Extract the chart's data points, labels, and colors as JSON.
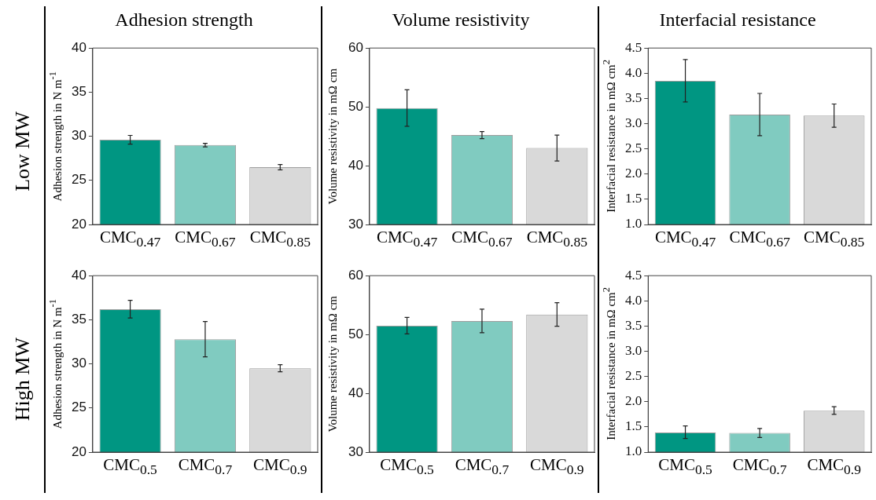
{
  "chart_data": [
    {
      "type": "bar",
      "title": "Adhesion strength",
      "ylabel": "Adhesion strength in N m$^{-1}$",
      "annotations": [
        "Low MW"
      ],
      "categories": [
        "CMC$_{0.47}$",
        "CMC$_{0.67}$",
        "CMC$_{0.85}$"
      ],
      "values": [
        29.6,
        29.0,
        26.5
      ],
      "errors": [
        0.5,
        0.2,
        0.3
      ],
      "colors": [
        "#009682",
        "#80cbc0",
        "#d9d9d9"
      ],
      "ylim": [
        20,
        40
      ],
      "yticks": [
        20,
        25,
        30,
        35,
        40
      ]
    },
    {
      "type": "bar",
      "title": "Volume resistivity",
      "ylabel": "Volume resistivity in mΩ cm",
      "categories": [
        "CMC$_{0.47}$",
        "CMC$_{0.67}$",
        "CMC$_{0.85}$"
      ],
      "values": [
        49.8,
        45.2,
        43.0
      ],
      "errors": [
        [
          46.7,
          52.9
        ],
        0.6,
        [
          40.8,
          45.2
        ]
      ],
      "colors": [
        "#009682",
        "#80cbc0",
        "#d9d9d9"
      ],
      "ylim": [
        30,
        60
      ],
      "yticks": [
        30,
        40,
        50,
        60
      ]
    },
    {
      "type": "bar",
      "title": "Interfacial resistance",
      "ylabel": "Interfacial resistance in mΩ cm$^{2}$",
      "categories": [
        "CMC$_{0.47}$",
        "CMC$_{0.67}$",
        "CMC$_{0.85}$"
      ],
      "values": [
        3.85,
        3.18,
        3.16
      ],
      "errors": [
        [
          3.43,
          4.27
        ],
        [
          2.76,
          3.6
        ],
        [
          2.93,
          3.39
        ]
      ],
      "colors": [
        "#009682",
        "#80cbc0",
        "#d9d9d9"
      ],
      "ylim": [
        1,
        4.5
      ],
      "yticks": [
        {
          "value": 1,
          "label": "1.0"
        },
        1.5,
        {
          "value": 2,
          "label": "2.0"
        },
        2.5,
        {
          "value": 3,
          "label": "3.0"
        },
        3.5,
        {
          "value": 4,
          "label": "4.0"
        },
        4.5
      ]
    },
    {
      "type": "bar",
      "ylabel": "Adhesion strength in N m$^{-1}$",
      "annotations": [
        "High MW"
      ],
      "categories": [
        "CMC$_{0.5}$",
        "CMC$_{0.7}$",
        "CMC$_{0.9}$"
      ],
      "values": [
        36.2,
        32.8,
        29.5
      ],
      "errors": [
        1.0,
        2.0,
        0.4
      ],
      "colors": [
        "#009682",
        "#80cbc0",
        "#d9d9d9"
      ],
      "ylim": [
        20,
        40
      ],
      "yticks": [
        20,
        25,
        30,
        35,
        40
      ]
    },
    {
      "type": "bar",
      "ylabel": "Volume resistivity in mΩ cm",
      "categories": [
        "CMC$_{0.5}$",
        "CMC$_{0.7}$",
        "CMC$_{0.9}$"
      ],
      "values": [
        51.5,
        52.3,
        53.4
      ],
      "errors": [
        1.4,
        2.0,
        2.0
      ],
      "colors": [
        "#009682",
        "#80cbc0",
        "#d9d9d9"
      ],
      "ylim": [
        30,
        60
      ],
      "yticks": [
        30,
        40,
        50,
        60
      ]
    },
    {
      "type": "bar",
      "ylabel": "Interfacial resistance in mΩ cm$^{2}$",
      "categories": [
        "CMC$_{0.5}$",
        "CMC$_{0.7}$",
        "CMC$_{0.9}$"
      ],
      "values": [
        1.39,
        1.38,
        1.82
      ],
      "errors": [
        [
          1.27,
          1.52
        ],
        [
          1.29,
          1.47
        ],
        [
          1.75,
          1.9
        ]
      ],
      "colors": [
        "#009682",
        "#80cbc0",
        "#d9d9d9"
      ],
      "ylim": [
        1,
        4.5
      ],
      "yticks": [
        {
          "value": 1,
          "label": "1.0"
        },
        1.5,
        {
          "value": 2,
          "label": "2.0"
        },
        2.5,
        {
          "value": 3,
          "label": "3.0"
        },
        3.5,
        {
          "value": 4,
          "label": "4.0"
        },
        4.5
      ]
    }
  ]
}
